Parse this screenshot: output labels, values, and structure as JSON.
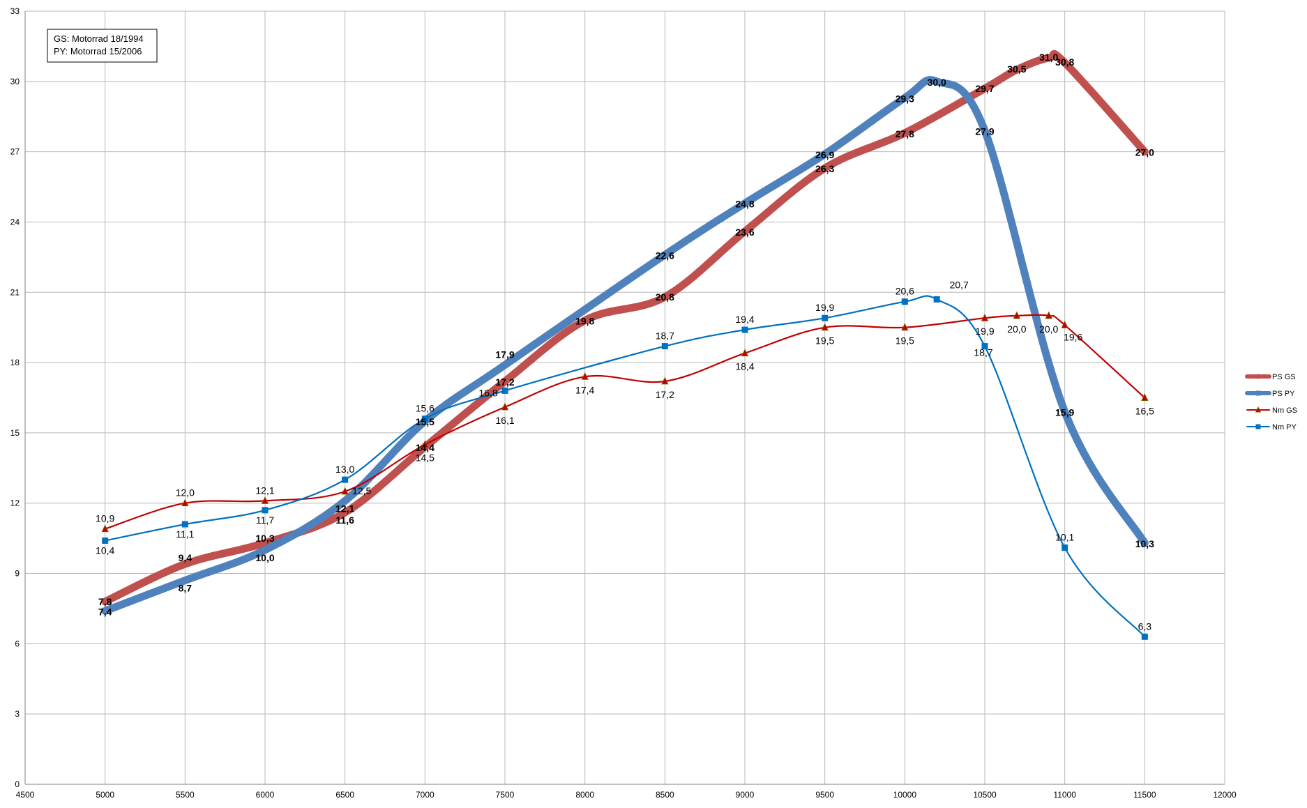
{
  "chart_data": {
    "type": "line",
    "title": "",
    "xlabel": "",
    "ylabel": "",
    "xlim": [
      4500,
      12000
    ],
    "ylim": [
      0,
      33
    ],
    "x_ticks": [
      4500,
      5000,
      5500,
      6000,
      6500,
      7000,
      7500,
      8000,
      8500,
      9000,
      9500,
      10000,
      10500,
      11000,
      11500,
      12000
    ],
    "y_ticks": [
      0,
      3,
      6,
      9,
      12,
      15,
      18,
      21,
      24,
      27,
      30,
      33
    ],
    "grid": true,
    "legend_position": "right",
    "annotation": [
      "GS: Motorrad 18/1994",
      "PY: Motorrad 15/2006"
    ],
    "series": [
      {
        "name": "PS GS",
        "color": "#c0504d",
        "thick": true,
        "marker": "circle",
        "points": [
          [
            5000,
            7.8
          ],
          [
            5500,
            9.4
          ],
          [
            6000,
            10.3
          ],
          [
            6500,
            11.6
          ],
          [
            7000,
            14.4
          ],
          [
            7500,
            17.2
          ],
          [
            8000,
            19.8
          ],
          [
            8500,
            20.8
          ],
          [
            9000,
            23.6
          ],
          [
            9500,
            26.3
          ],
          [
            10000,
            27.8
          ],
          [
            10500,
            29.7
          ],
          [
            10700,
            30.5
          ],
          [
            10900,
            31.0
          ],
          [
            11000,
            30.8
          ],
          [
            11500,
            27.0
          ]
        ],
        "labels": [
          "7,8",
          "9,4",
          "10,3",
          "11,6",
          "14,4",
          "17,2",
          "19,8",
          "20,8",
          "23,6",
          "26,3",
          "27,8",
          "29,7",
          "30,5",
          "31,0",
          "30,8",
          "27,0"
        ]
      },
      {
        "name": "PS PY",
        "color": "#4f81bd",
        "thick": true,
        "marker": "square",
        "points": [
          [
            5000,
            7.4
          ],
          [
            5500,
            8.7
          ],
          [
            6000,
            10.0
          ],
          [
            6500,
            12.1
          ],
          [
            7000,
            15.5
          ],
          [
            7500,
            17.9
          ],
          [
            8500,
            22.6
          ],
          [
            9000,
            24.8
          ],
          [
            9500,
            26.9
          ],
          [
            10000,
            29.3
          ],
          [
            10200,
            30.0
          ],
          [
            10500,
            27.9
          ],
          [
            11000,
            15.9
          ],
          [
            11500,
            10.3
          ]
        ],
        "labels": [
          "7,4",
          "8,7",
          "10,0",
          "12,1",
          "15,5",
          "17,9",
          "22,6",
          "24,8",
          "26,9",
          "29,3",
          "30,0",
          "27,9",
          "15,9",
          "10,3"
        ]
      },
      {
        "name": "Nm GS",
        "color": "#c00000",
        "thick": false,
        "marker": "triangle",
        "points": [
          [
            5000,
            10.9
          ],
          [
            5500,
            12.0
          ],
          [
            6000,
            12.1
          ],
          [
            6500,
            12.5
          ],
          [
            7000,
            14.5
          ],
          [
            7500,
            16.1
          ],
          [
            8000,
            17.4
          ],
          [
            8500,
            17.2
          ],
          [
            9000,
            18.4
          ],
          [
            9500,
            19.5
          ],
          [
            10000,
            19.5
          ],
          [
            10500,
            19.9
          ],
          [
            10700,
            20.0
          ],
          [
            10900,
            20.0
          ],
          [
            11000,
            19.6
          ],
          [
            11500,
            16.5
          ]
        ],
        "labels": [
          "10,9",
          "12,0",
          "12,1",
          "12,5",
          "14,5",
          "16,1",
          "17,4",
          "17,2",
          "18,4",
          "19,5",
          "19,5",
          "19,9",
          "20,0",
          "20,0",
          "19,6",
          "16,5"
        ]
      },
      {
        "name": "Nm PY",
        "color": "#0070c0",
        "thick": false,
        "marker": "square",
        "points": [
          [
            5000,
            10.4
          ],
          [
            5500,
            11.1
          ],
          [
            6000,
            11.7
          ],
          [
            6500,
            13.0
          ],
          [
            7000,
            15.6
          ],
          [
            7500,
            16.8
          ],
          [
            8500,
            18.7
          ],
          [
            9000,
            19.4
          ],
          [
            9500,
            19.9
          ],
          [
            10000,
            20.6
          ],
          [
            10200,
            20.7
          ],
          [
            10500,
            18.7
          ],
          [
            11000,
            10.1
          ],
          [
            11500,
            6.3
          ]
        ],
        "labels": [
          "10,4",
          "11,1",
          "11,7",
          "13,0",
          "15,6",
          "16,8",
          "18,7",
          "19,4",
          "19,9",
          "20,6",
          "20,7",
          "18,7",
          "10,1",
          "6,3"
        ]
      }
    ]
  }
}
